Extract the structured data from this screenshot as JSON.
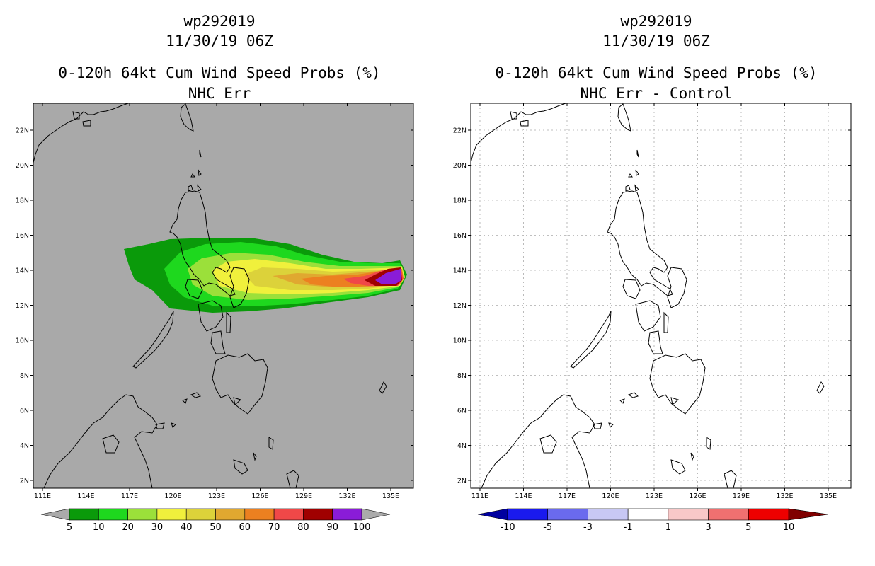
{
  "left": {
    "storm_id": "wp292019",
    "datetime": "11/30/19 06Z",
    "product": "0-120h 64kt Cum Wind Speed Probs (%)",
    "subtitle": "NHC Err",
    "background_color": "#a9a9a9",
    "colorbar": {
      "labels": [
        "5",
        "10",
        "20",
        "30",
        "40",
        "50",
        "60",
        "70",
        "80",
        "90",
        "100"
      ],
      "colors": [
        "#0a9a0a",
        "#1ed81e",
        "#9be03a",
        "#f0f03c",
        "#dcd23a",
        "#e0a830",
        "#ec8020",
        "#f04848",
        "#a00000",
        "#8a1cd8"
      ],
      "arrow_colors": [
        "#aaaaaa",
        "#aaaaaa"
      ]
    }
  },
  "right": {
    "storm_id": "wp292019",
    "datetime": "11/30/19 06Z",
    "product": "0-120h 64kt Cum Wind Speed Probs (%)",
    "subtitle": "NHC Err - Control",
    "background_color": "#ffffff",
    "colorbar": {
      "labels": [
        "-10",
        "-5",
        "-3",
        "-1",
        "1",
        "3",
        "5",
        "10"
      ],
      "colors": [
        "#1a1aee",
        "#6a6aee",
        "#c8c8f4",
        "#ffffff",
        "#f8c8c8",
        "#f07070",
        "#ee0000"
      ],
      "arrow_colors": [
        "#0000a0",
        "#800000"
      ]
    }
  },
  "axes": {
    "lat_labels": [
      "22N",
      "20N",
      "18N",
      "16N",
      "14N",
      "12N",
      "10N",
      "8N",
      "6N",
      "4N",
      "2N"
    ],
    "lon_labels": [
      "111E",
      "114E",
      "117E",
      "120E",
      "123E",
      "126E",
      "129E",
      "132E",
      "135E"
    ]
  }
}
